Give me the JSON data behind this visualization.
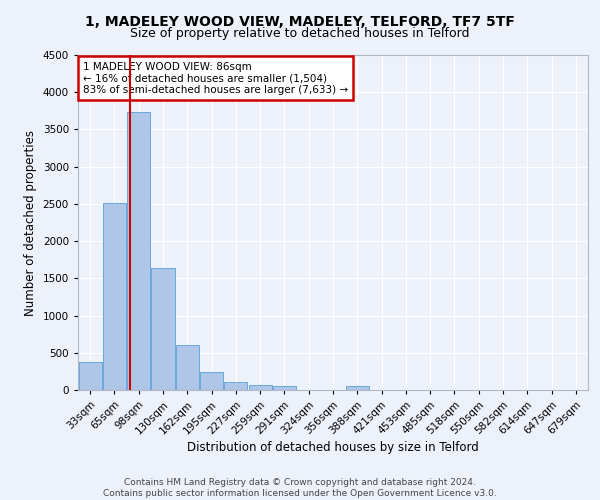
{
  "title1": "1, MADELEY WOOD VIEW, MADELEY, TELFORD, TF7 5TF",
  "title2": "Size of property relative to detached houses in Telford",
  "xlabel": "Distribution of detached houses by size in Telford",
  "ylabel": "Number of detached properties",
  "categories": [
    "33sqm",
    "65sqm",
    "98sqm",
    "130sqm",
    "162sqm",
    "195sqm",
    "227sqm",
    "259sqm",
    "291sqm",
    "324sqm",
    "356sqm",
    "388sqm",
    "421sqm",
    "453sqm",
    "485sqm",
    "518sqm",
    "550sqm",
    "582sqm",
    "614sqm",
    "647sqm",
    "679sqm"
  ],
  "values": [
    375,
    2510,
    3730,
    1640,
    600,
    240,
    105,
    65,
    55,
    0,
    0,
    60,
    0,
    0,
    0,
    0,
    0,
    0,
    0,
    0,
    0
  ],
  "bar_color": "#aec6e8",
  "bar_edge_color": "#5a9fd4",
  "annotation_text": "1 MADELEY WOOD VIEW: 86sqm\n← 16% of detached houses are smaller (1,504)\n83% of semi-detached houses are larger (7,633) →",
  "annotation_box_color": "#ffffff",
  "annotation_box_edge_color": "#cc0000",
  "ylim": [
    0,
    4500
  ],
  "yticks": [
    0,
    500,
    1000,
    1500,
    2000,
    2500,
    3000,
    3500,
    4000,
    4500
  ],
  "footer1": "Contains HM Land Registry data © Crown copyright and database right 2024.",
  "footer2": "Contains public sector information licensed under the Open Government Licence v3.0.",
  "background_color": "#edf2fa",
  "grid_color": "#ffffff",
  "title1_fontsize": 10,
  "title2_fontsize": 9,
  "axis_label_fontsize": 8.5,
  "tick_fontsize": 7.5,
  "footer_fontsize": 6.5
}
